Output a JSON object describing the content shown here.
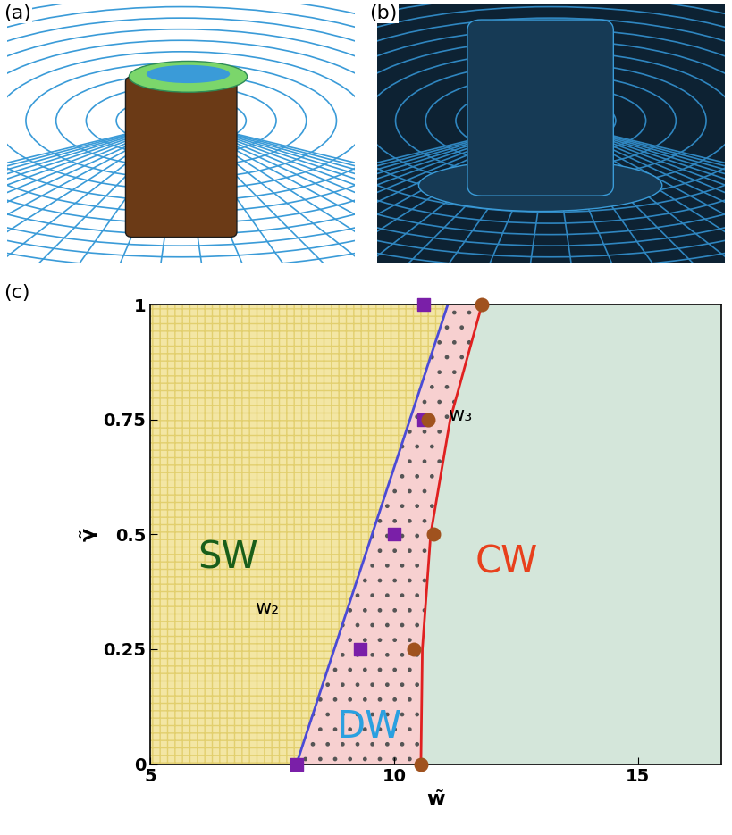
{
  "panels": [
    {
      "label": "(a)"
    },
    {
      "label": "(b)"
    }
  ],
  "chart_data": {
    "type": "phase_diagram",
    "title": "(c)",
    "x_label": "w̃",
    "y_label": "γ̃",
    "xlim": [
      5,
      16.7
    ],
    "ylim": [
      0,
      1
    ],
    "xticks": [
      5,
      10,
      15
    ],
    "yticks": [
      0,
      0.25,
      0.5,
      0.75,
      1
    ],
    "series": [
      {
        "name": "w₂",
        "type": "scatter",
        "marker": "square",
        "color": "#7a1fa8",
        "x": [
          8.0,
          9.3,
          10.0,
          10.6,
          10.6
        ],
        "y": [
          0,
          0.25,
          0.5,
          0.75,
          1
        ]
      },
      {
        "name": "w₂",
        "type": "line",
        "color": "#4b4bd6",
        "x": [
          8.0,
          11.1
        ],
        "y": [
          0,
          1
        ]
      },
      {
        "name": "w₃",
        "type": "scatter",
        "marker": "circle",
        "color": "#a0521e",
        "x": [
          10.55,
          10.4,
          10.8,
          10.7,
          11.8
        ],
        "y": [
          0,
          0.25,
          0.5,
          0.75,
          1
        ]
      },
      {
        "name": "w₃",
        "type": "line",
        "color": "#e02020",
        "x": [
          10.55,
          10.58,
          10.75,
          11.15,
          11.8
        ],
        "y": [
          0,
          0.25,
          0.5,
          0.75,
          1
        ]
      }
    ],
    "annotations": [
      {
        "text": "SW",
        "x": 6.6,
        "y": 0.45,
        "color": "#1a5e1a"
      },
      {
        "text": "DW",
        "x": 9.5,
        "y": 0.08,
        "color": "#2aa0e0"
      },
      {
        "text": "CW",
        "x": 12.3,
        "y": 0.44,
        "color": "#e8401c"
      },
      {
        "text": "w₂",
        "x": 7.4,
        "y": 0.34,
        "color": "#000000"
      },
      {
        "text": "w₃",
        "x": 11.35,
        "y": 0.76,
        "color": "#000000"
      }
    ]
  }
}
